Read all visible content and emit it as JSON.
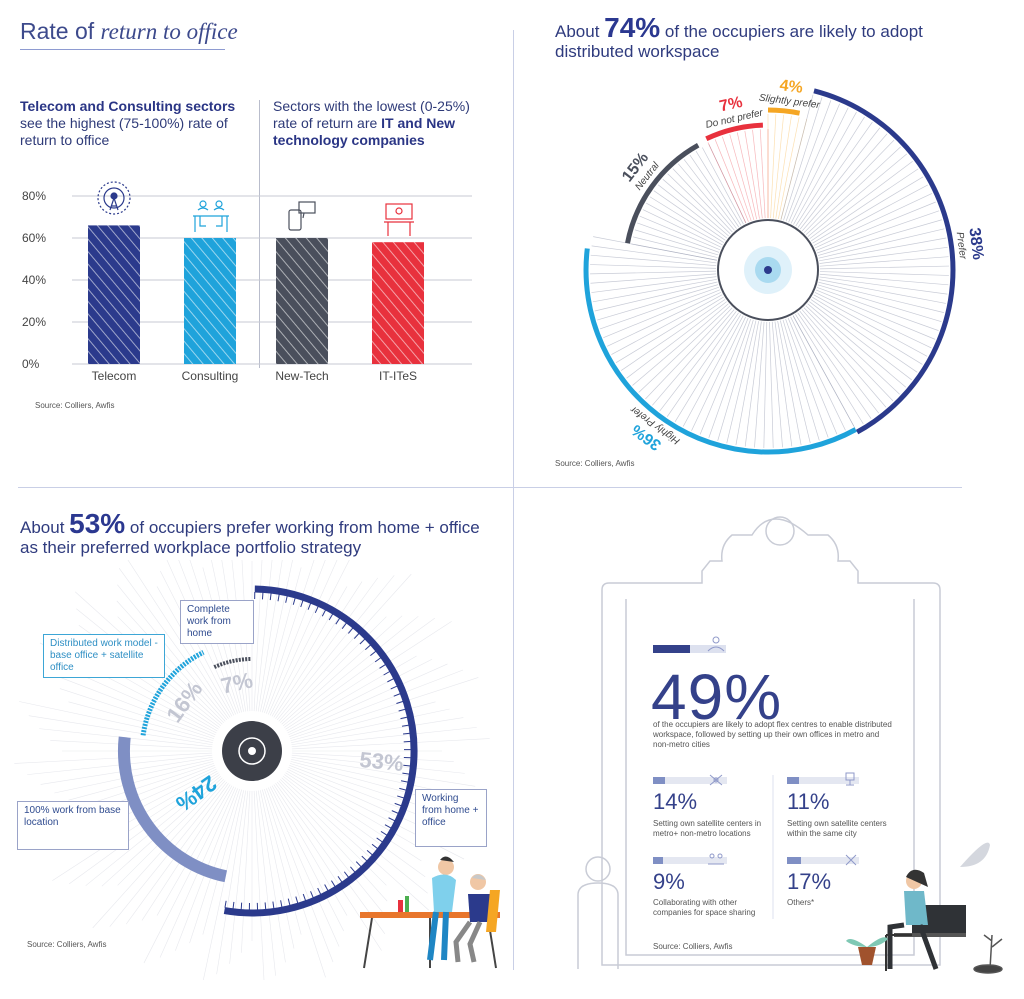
{
  "panel1": {
    "title_plain": "Rate of ",
    "title_italic": "return to office",
    "left_text_bold": "Telecom and Consulting sectors",
    "left_text_rest": " see the highest (75-100%) rate of return to office",
    "right_text_plain": "Sectors with the lowest (0-25%) rate of return are ",
    "right_text_bold": "IT and New technology companies",
    "source": "Source: Colliers, Awfis"
  },
  "panel2": {
    "headline_pre": "About ",
    "headline_pct": "74%",
    "headline_post": " of the occupiers are likely to adopt distributed workspace",
    "source": "Source: Colliers, Awfis"
  },
  "panel3": {
    "headline_pre": "About ",
    "headline_pct": "53%",
    "headline_post": " of occupiers prefer working from home + office as their preferred workplace portfolio strategy",
    "callouts": {
      "complete": "Complete work from home",
      "distributed": "Distributed work model - base office + satellite office",
      "base": "100% work from base location",
      "working": "Working from home + office"
    },
    "source": "Source: Colliers, Awfis"
  },
  "panel4": {
    "main_pct": "49%",
    "main_text": "of the occupiers are likely to adopt flex centres to enable distributed workspace, followed by setting up their own offices in metro and non-metro cities",
    "items": [
      {
        "pct": "14%",
        "text": "Setting own satellite centers in metro+ non-metro locations"
      },
      {
        "pct": "11%",
        "text": "Setting own satellite centers within the same city"
      },
      {
        "pct": "9%",
        "text": "Collaborating with other companies for space sharing"
      },
      {
        "pct": "17%",
        "text": "Others*"
      }
    ],
    "source": "Source: Colliers, Awfis"
  },
  "colors": {
    "navy": "#2b3a8c",
    "cyan": "#1fa3db",
    "gray": "#4a4f5c",
    "red": "#e8313d",
    "orange": "#f5a623",
    "slate": "#7f8fc4"
  },
  "chart_data": [
    {
      "type": "bar",
      "title": "Rate of return to office",
      "categories": [
        "Telecom",
        "Consulting",
        "New-Tech",
        "IT-ITeS"
      ],
      "values": [
        66,
        60,
        60,
        58
      ],
      "ylim": [
        0,
        80
      ],
      "yticks": [
        "80%",
        "60%",
        "40%",
        "20%",
        "0%"
      ],
      "tick_values": [
        80,
        60,
        40,
        20,
        0
      ],
      "colors": [
        "#2b3a8c",
        "#1fa3db",
        "#4a4f5c",
        "#e8313d"
      ]
    },
    {
      "type": "pie",
      "title": "About 74% of the occupiers are likely to adopt distributed workspace",
      "categories": [
        "Prefer",
        "Highly Prefer",
        "Neutral",
        "Do not prefer",
        "Slightly prefer"
      ],
      "values": [
        38,
        36,
        15,
        7,
        4
      ],
      "labels": [
        "38%",
        "36%",
        "15%",
        "7%",
        "4%"
      ],
      "colors": [
        "#2b3a8c",
        "#1fa3db",
        "#4a4f5c",
        "#e8313d",
        "#f5a623"
      ]
    },
    {
      "type": "pie",
      "title": "About 53% of occupiers prefer working from home + office as their preferred workplace portfolio strategy",
      "categories": [
        "Working from home + office",
        "100% work from base location",
        "Distributed work model - base office + satellite office",
        "Complete work from home"
      ],
      "values": [
        53,
        24,
        16,
        7
      ],
      "labels": [
        "53%",
        "24%",
        "16%",
        "7%"
      ],
      "colors": [
        "#2b3a8c",
        "#7f8fc4",
        "#1fa3db",
        "#4a4f5c"
      ]
    }
  ]
}
